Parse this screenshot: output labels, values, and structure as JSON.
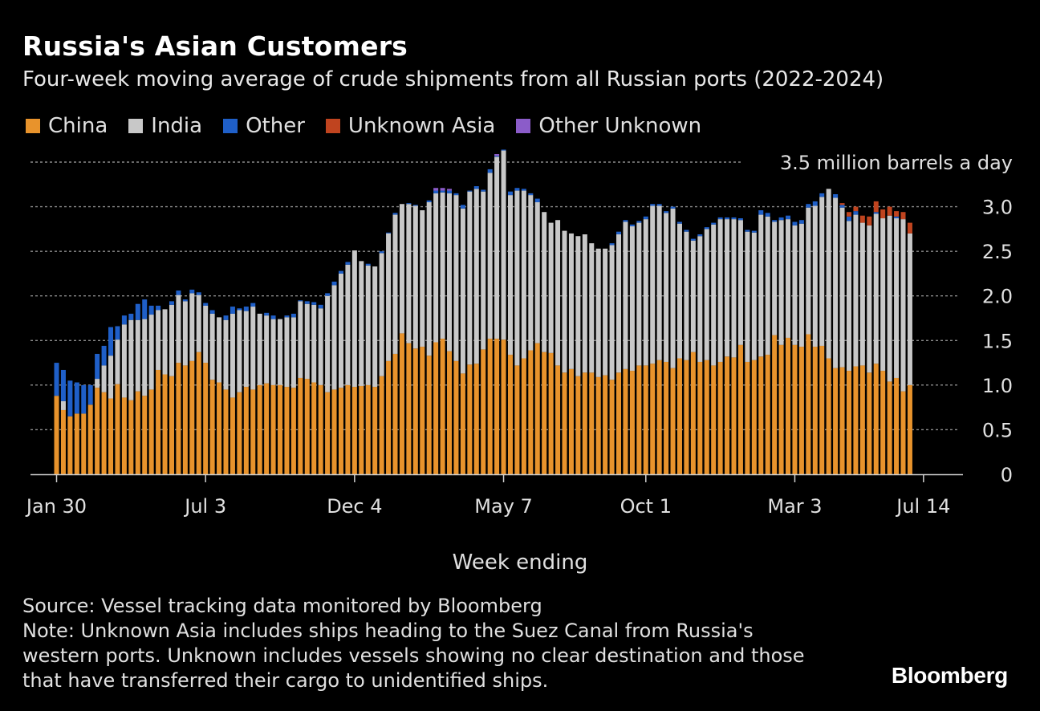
{
  "header": {
    "title": "Russia's Asian Customers",
    "subtitle": "Four-week moving average of crude shipments from all Russian ports (2022-2024)"
  },
  "chart_data": {
    "type": "bar",
    "stacked": true,
    "title": "Russia's Asian Customers",
    "subtitle": "Four-week moving average of crude shipments from all Russian ports (2022-2024)",
    "xlabel": "Week ending",
    "ylabel": "",
    "unit_label": "3.5 million barrels a day",
    "ylim": [
      0,
      3.5
    ],
    "yticks": [
      0,
      0.5,
      1.0,
      1.5,
      2.0,
      2.5,
      3.0
    ],
    "ytick_labels": [
      "0",
      "0.5",
      "1.0",
      "1.5",
      "2.0",
      "2.5",
      "3.0"
    ],
    "xtick_labels": [
      "Jan 30",
      "Jul 3",
      "Dec 4",
      "May 7",
      "Oct 1",
      "Mar 3",
      "Jul 14"
    ],
    "xtick_indices": [
      0,
      22,
      44,
      66,
      87,
      109,
      128
    ],
    "legend": [
      "China",
      "India",
      "Other",
      "Unknown Asia",
      "Other Unknown"
    ],
    "colors": {
      "China": "#e8932c",
      "India": "#c8c8c8",
      "Other": "#1f5fc8",
      "Unknown Asia": "#c0441f",
      "Other Unknown": "#8b5cc9",
      "grid": "#8a8a8a",
      "axis": "#cfcfcf"
    },
    "series": [
      {
        "name": "China",
        "values": [
          0.88,
          0.72,
          0.65,
          0.68,
          0.68,
          0.78,
          0.97,
          0.92,
          0.85,
          1.01,
          0.86,
          0.83,
          0.93,
          0.88,
          0.95,
          1.17,
          1.12,
          1.1,
          1.25,
          1.22,
          1.27,
          1.37,
          1.25,
          1.06,
          1.03,
          0.95,
          0.86,
          0.92,
          0.98,
          0.95,
          1.0,
          1.02,
          1.0,
          1.0,
          0.98,
          0.97,
          1.08,
          1.07,
          1.03,
          1.0,
          0.92,
          0.95,
          0.97,
          1.0,
          0.98,
          0.99,
          1.0,
          0.98,
          1.1,
          1.27,
          1.35,
          1.58,
          1.47,
          1.41,
          1.43,
          1.33,
          1.48,
          1.52,
          1.38,
          1.27,
          1.13,
          1.23,
          1.24,
          1.4,
          1.52,
          1.52,
          1.51,
          1.34,
          1.22,
          1.3,
          1.39,
          1.47,
          1.37,
          1.36,
          1.22,
          1.14,
          1.18,
          1.1,
          1.14,
          1.14,
          1.09,
          1.11,
          1.06,
          1.14,
          1.18,
          1.16,
          1.22,
          1.22,
          1.24,
          1.28,
          1.26,
          1.19,
          1.3,
          1.28,
          1.37,
          1.26,
          1.28,
          1.22,
          1.26,
          1.32,
          1.31,
          1.45,
          1.26,
          1.28,
          1.32,
          1.34,
          1.56,
          1.45,
          1.53,
          1.45,
          1.43,
          1.57,
          1.43,
          1.44,
          1.3,
          1.19,
          1.2,
          1.16,
          1.21,
          1.22,
          1.14,
          1.24,
          1.16,
          1.04,
          1.08,
          0.93,
          1.0
        ]
      },
      {
        "name": "India",
        "values": [
          0.0,
          0.1,
          0.0,
          0.0,
          0.0,
          0.0,
          0.1,
          0.3,
          0.48,
          0.5,
          0.82,
          0.9,
          0.8,
          0.86,
          0.84,
          0.67,
          0.73,
          0.8,
          0.76,
          0.72,
          0.76,
          0.64,
          0.64,
          0.74,
          0.73,
          0.78,
          0.94,
          0.92,
          0.85,
          0.93,
          0.8,
          0.76,
          0.74,
          0.74,
          0.78,
          0.79,
          0.86,
          0.84,
          0.87,
          0.86,
          1.08,
          1.17,
          1.28,
          1.35,
          1.53,
          1.4,
          1.34,
          1.35,
          1.38,
          1.43,
          1.56,
          1.45,
          1.56,
          1.6,
          1.53,
          1.72,
          1.67,
          1.64,
          1.77,
          1.86,
          1.85,
          1.94,
          1.96,
          1.77,
          1.86,
          2.04,
          2.12,
          1.79,
          1.96,
          1.88,
          1.74,
          1.58,
          1.57,
          1.46,
          1.63,
          1.59,
          1.52,
          1.57,
          1.55,
          1.45,
          1.44,
          1.42,
          1.51,
          1.55,
          1.65,
          1.62,
          1.6,
          1.64,
          1.77,
          1.73,
          1.67,
          1.79,
          1.51,
          1.44,
          1.25,
          1.41,
          1.47,
          1.58,
          1.6,
          1.54,
          1.55,
          1.4,
          1.46,
          1.43,
          1.59,
          1.55,
          1.27,
          1.4,
          1.33,
          1.34,
          1.38,
          1.42,
          1.58,
          1.67,
          1.9,
          1.91,
          1.79,
          1.68,
          1.7,
          1.6,
          1.65,
          1.68,
          1.71,
          1.86,
          1.79,
          1.93,
          1.7
        ]
      },
      {
        "name": "Other",
        "values": [
          0.37,
          0.35,
          0.4,
          0.35,
          0.32,
          0.22,
          0.28,
          0.22,
          0.32,
          0.15,
          0.1,
          0.07,
          0.18,
          0.22,
          0.1,
          0.05,
          0.0,
          0.04,
          0.05,
          0.02,
          0.04,
          0.03,
          0.03,
          0.04,
          0.0,
          0.05,
          0.08,
          0.02,
          0.05,
          0.04,
          0.0,
          0.03,
          0.04,
          0.0,
          0.02,
          0.04,
          0.01,
          0.03,
          0.03,
          0.04,
          0.03,
          0.04,
          0.03,
          0.03,
          0.0,
          0.0,
          0.02,
          0.0,
          0.02,
          0.01,
          0.02,
          0.0,
          0.01,
          0.01,
          0.0,
          0.02,
          0.03,
          0.02,
          0.03,
          0.02,
          0.04,
          0.01,
          0.03,
          0.02,
          0.04,
          0.01,
          0.01,
          0.04,
          0.03,
          0.02,
          0.02,
          0.04,
          0.0,
          0.0,
          0.0,
          0.0,
          0.0,
          0.0,
          0.0,
          0.0,
          0.0,
          0.0,
          0.02,
          0.03,
          0.02,
          0.02,
          0.02,
          0.03,
          0.02,
          0.02,
          0.02,
          0.02,
          0.02,
          0.02,
          0.02,
          0.02,
          0.02,
          0.02,
          0.02,
          0.02,
          0.02,
          0.02,
          0.02,
          0.02,
          0.05,
          0.04,
          0.02,
          0.03,
          0.04,
          0.04,
          0.04,
          0.04,
          0.05,
          0.04,
          0.0,
          0.04,
          0.03,
          0.05,
          0.04,
          0.0,
          0.0,
          0.02,
          0.0,
          0.0,
          0.02,
          0.0,
          0.0
        ]
      },
      {
        "name": "Unknown Asia",
        "values": [
          0,
          0,
          0,
          0,
          0,
          0,
          0,
          0,
          0,
          0,
          0,
          0,
          0,
          0,
          0,
          0,
          0,
          0,
          0,
          0,
          0,
          0,
          0,
          0,
          0,
          0,
          0,
          0,
          0,
          0,
          0,
          0,
          0,
          0,
          0,
          0,
          0,
          0,
          0,
          0,
          0,
          0,
          0,
          0,
          0,
          0,
          0,
          0,
          0,
          0,
          0,
          0,
          0,
          0,
          0,
          0,
          0,
          0,
          0,
          0,
          0,
          0,
          0,
          0,
          0,
          0,
          0,
          0,
          0,
          0,
          0,
          0,
          0,
          0,
          0,
          0,
          0,
          0,
          0,
          0,
          0,
          0,
          0,
          0,
          0,
          0,
          0,
          0,
          0,
          0,
          0,
          0,
          0,
          0,
          0,
          0,
          0,
          0,
          0,
          0,
          0,
          0,
          0,
          0,
          0,
          0,
          0,
          0,
          0,
          0,
          0,
          0,
          0,
          0,
          0,
          0,
          0.02,
          0.05,
          0.05,
          0.08,
          0.1,
          0.12,
          0.1,
          0.1,
          0.06,
          0.08,
          0.12
        ]
      },
      {
        "name": "Other Unknown",
        "values": [
          0,
          0,
          0,
          0,
          0,
          0,
          0,
          0,
          0,
          0,
          0,
          0,
          0,
          0,
          0,
          0,
          0,
          0,
          0,
          0,
          0,
          0,
          0,
          0,
          0,
          0,
          0,
          0,
          0,
          0,
          0,
          0,
          0,
          0,
          0,
          0,
          0,
          0,
          0,
          0,
          0,
          0,
          0,
          0,
          0,
          0,
          0,
          0,
          0,
          0,
          0,
          0,
          0,
          0,
          0,
          0,
          0.03,
          0.03,
          0.02,
          0,
          0,
          0,
          0,
          0,
          0,
          0.02,
          0,
          0,
          0,
          0,
          0,
          0,
          0,
          0,
          0,
          0,
          0,
          0,
          0,
          0,
          0,
          0,
          0,
          0,
          0,
          0,
          0,
          0,
          0,
          0,
          0,
          0,
          0,
          0,
          0,
          0,
          0,
          0,
          0,
          0,
          0,
          0,
          0,
          0,
          0,
          0,
          0,
          0,
          0,
          0,
          0,
          0,
          0,
          0,
          0,
          0,
          0,
          0,
          0,
          0,
          0,
          0,
          0,
          0,
          0,
          0,
          0,
          0,
          0
        ]
      }
    ]
  },
  "footer": {
    "source": "Source: Vessel tracking data monitored by Bloomberg",
    "note_lines": [
      "Note: Unknown Asia includes ships heading to the Suez Canal from Russia's",
      "western ports. Unknown includes vessels showing no clear destination and those",
      "that have transferred their cargo to unidentified ships."
    ],
    "brand": "Bloomberg"
  }
}
